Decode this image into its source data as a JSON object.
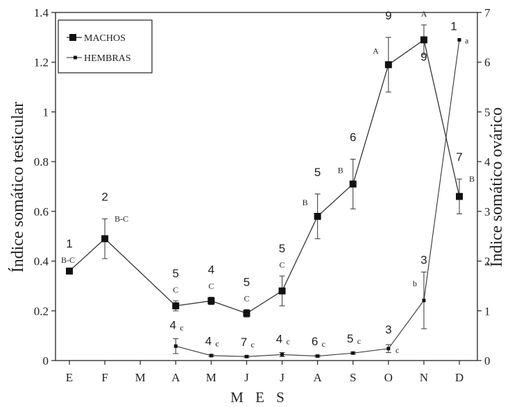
{
  "chart_data": {
    "type": "line",
    "xlabel": "M E S",
    "ylabel_left": "Índice somático testicular",
    "ylabel_right": "Índice somático ovárico",
    "categories": [
      "E",
      "F",
      "M",
      "A",
      "M",
      "J",
      "J",
      "A",
      "S",
      "O",
      "N",
      "D"
    ],
    "y_left": {
      "lim": [
        0,
        1.4
      ],
      "ticks": [
        "0",
        "0.2",
        "0.4",
        "0.6",
        "0.8",
        "1",
        "1.2",
        "1.4"
      ]
    },
    "y_right": {
      "lim": [
        0,
        7
      ],
      "ticks": [
        "0",
        "1",
        "2",
        "3",
        "4",
        "5",
        "6",
        "7"
      ]
    },
    "grid": false,
    "legend_position": "top-left",
    "legend": [
      {
        "label": "MACHOS",
        "marker": "square-large"
      },
      {
        "label": "HEMBRAS",
        "marker": "square-small"
      }
    ],
    "series": [
      {
        "name": "MACHOS",
        "axis": "left",
        "points": [
          {
            "i": 0,
            "y": 0.36,
            "err": null,
            "n": "1",
            "sig": "B-C",
            "sig_pos": "above-left"
          },
          {
            "i": 1,
            "y": 0.49,
            "err": 0.08,
            "n": "2",
            "sig": "B-C",
            "sig_pos": "right"
          },
          {
            "i": 3,
            "y": 0.22,
            "err": 0.02,
            "n": "5",
            "sig": "C",
            "sig_pos": "above"
          },
          {
            "i": 4,
            "y": 0.24,
            "err": 0.015,
            "n": "4",
            "sig": "C",
            "sig_pos": "above"
          },
          {
            "i": 5,
            "y": 0.19,
            "err": 0.015,
            "n": "5",
            "sig": "C",
            "sig_pos": "above"
          },
          {
            "i": 6,
            "y": 0.28,
            "err": 0.06,
            "n": "5",
            "sig": "C",
            "sig_pos": "above"
          },
          {
            "i": 7,
            "y": 0.58,
            "err": 0.09,
            "n": "5",
            "sig": "B",
            "sig_pos": "left"
          },
          {
            "i": 8,
            "y": 0.71,
            "err": 0.1,
            "n": "6",
            "sig": "B",
            "sig_pos": "left"
          },
          {
            "i": 9,
            "y": 1.19,
            "err": 0.11,
            "n": "9",
            "sig": "A",
            "sig_pos": "left"
          },
          {
            "i": 10,
            "y": 1.29,
            "err": 0.06,
            "n": "9",
            "sig": "A",
            "sig_pos": "above",
            "n_pos": "below"
          },
          {
            "i": 11,
            "y": 0.66,
            "err": 0.07,
            "n": "7",
            "sig": "B",
            "sig_pos": "right"
          }
        ]
      },
      {
        "name": "HEMBRAS",
        "axis": "right",
        "points": [
          {
            "i": 3,
            "y": 0.29,
            "err": 0.15,
            "n": "4",
            "sig": "c"
          },
          {
            "i": 4,
            "y": 0.1,
            "err": 0.02,
            "n": "4",
            "sig": "c"
          },
          {
            "i": 5,
            "y": 0.08,
            "err": 0.02,
            "n": "7",
            "sig": "c"
          },
          {
            "i": 6,
            "y": 0.12,
            "err": 0.04,
            "n": "4",
            "sig": "c"
          },
          {
            "i": 7,
            "y": 0.09,
            "err": 0.02,
            "n": "6",
            "sig": "c"
          },
          {
            "i": 8,
            "y": 0.15,
            "err": 0.02,
            "n": "5",
            "sig": "c"
          },
          {
            "i": 9,
            "y": 0.24,
            "err": 0.08,
            "n": "3",
            "sig": "c"
          },
          {
            "i": 10,
            "y": 1.21,
            "err": 0.57,
            "n": "3",
            "sig": "b",
            "sig_pos": "left"
          },
          {
            "i": 11,
            "y": 6.45,
            "err": null,
            "n": "1",
            "sig": "a",
            "sig_pos": "right"
          }
        ]
      }
    ]
  }
}
